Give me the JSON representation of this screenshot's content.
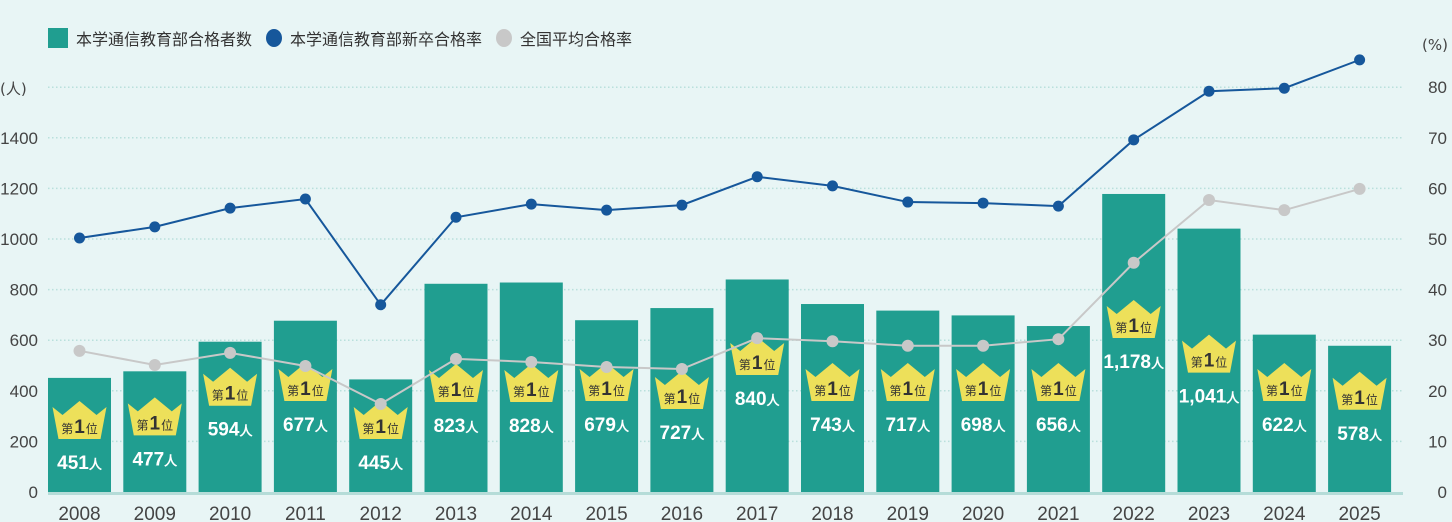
{
  "legend": {
    "bar_label": "本学通信教育部合格者数",
    "blue_label": "本学通信教育部新卒合格率",
    "gray_label": "全国平均合格率"
  },
  "axes": {
    "left_unit": "(人)",
    "right_unit": "(%)",
    "left_ticks": [
      0,
      200,
      400,
      600,
      800,
      1000,
      1200,
      1400
    ],
    "right_ticks": [
      0,
      10,
      20,
      30,
      40,
      50,
      60,
      70,
      80
    ]
  },
  "badge": {
    "prefix": "第",
    "rank": "1",
    "suffix": "位"
  },
  "value_unit": "人",
  "colors": {
    "background": "#e8f5f5",
    "bar": "#209e90",
    "blue_line": "#16579b",
    "gray_line": "#c8c8c8",
    "crown": "#ede05a",
    "grid": "#b9e0dc"
  },
  "chart_data": {
    "type": "bar",
    "title": "",
    "xlabel": "",
    "ylabel": "(人)",
    "y2label": "(%)",
    "ylim": [
      0,
      1600
    ],
    "y2lim": [
      0,
      90
    ],
    "grid": true,
    "legend_position": "top-left",
    "categories": [
      "2008",
      "2009",
      "2010",
      "2011",
      "2012",
      "2013",
      "2014",
      "2015",
      "2016",
      "2017",
      "2018",
      "2019",
      "2020",
      "2021",
      "2022",
      "2023",
      "2024",
      "2025"
    ],
    "series": [
      {
        "name": "本学通信教育部合格者数",
        "type": "bar",
        "axis": "left",
        "values": [
          451,
          477,
          594,
          677,
          445,
          823,
          828,
          679,
          727,
          840,
          743,
          717,
          698,
          656,
          1178,
          1041,
          622,
          578
        ],
        "labels": [
          "451",
          "477",
          "594",
          "677",
          "445",
          "823",
          "828",
          "679",
          "727",
          "840",
          "743",
          "717",
          "698",
          "656",
          "1,178",
          "1,041",
          "622",
          "578"
        ]
      },
      {
        "name": "本学通信教育部新卒合格率",
        "type": "line",
        "axis": "right",
        "values": [
          50.2,
          52.4,
          56.1,
          57.9,
          37.0,
          54.3,
          56.9,
          55.7,
          56.7,
          62.3,
          60.5,
          57.3,
          57.1,
          56.5,
          69.6,
          79.2,
          79.8,
          85.4
        ]
      },
      {
        "name": "全国平均合格率",
        "type": "line",
        "axis": "right",
        "values": [
          27.9,
          25.1,
          27.5,
          24.9,
          17.4,
          26.3,
          25.7,
          24.7,
          24.3,
          30.4,
          29.8,
          28.9,
          28.9,
          30.2,
          45.3,
          57.7,
          55.7,
          59.9
        ]
      }
    ]
  }
}
